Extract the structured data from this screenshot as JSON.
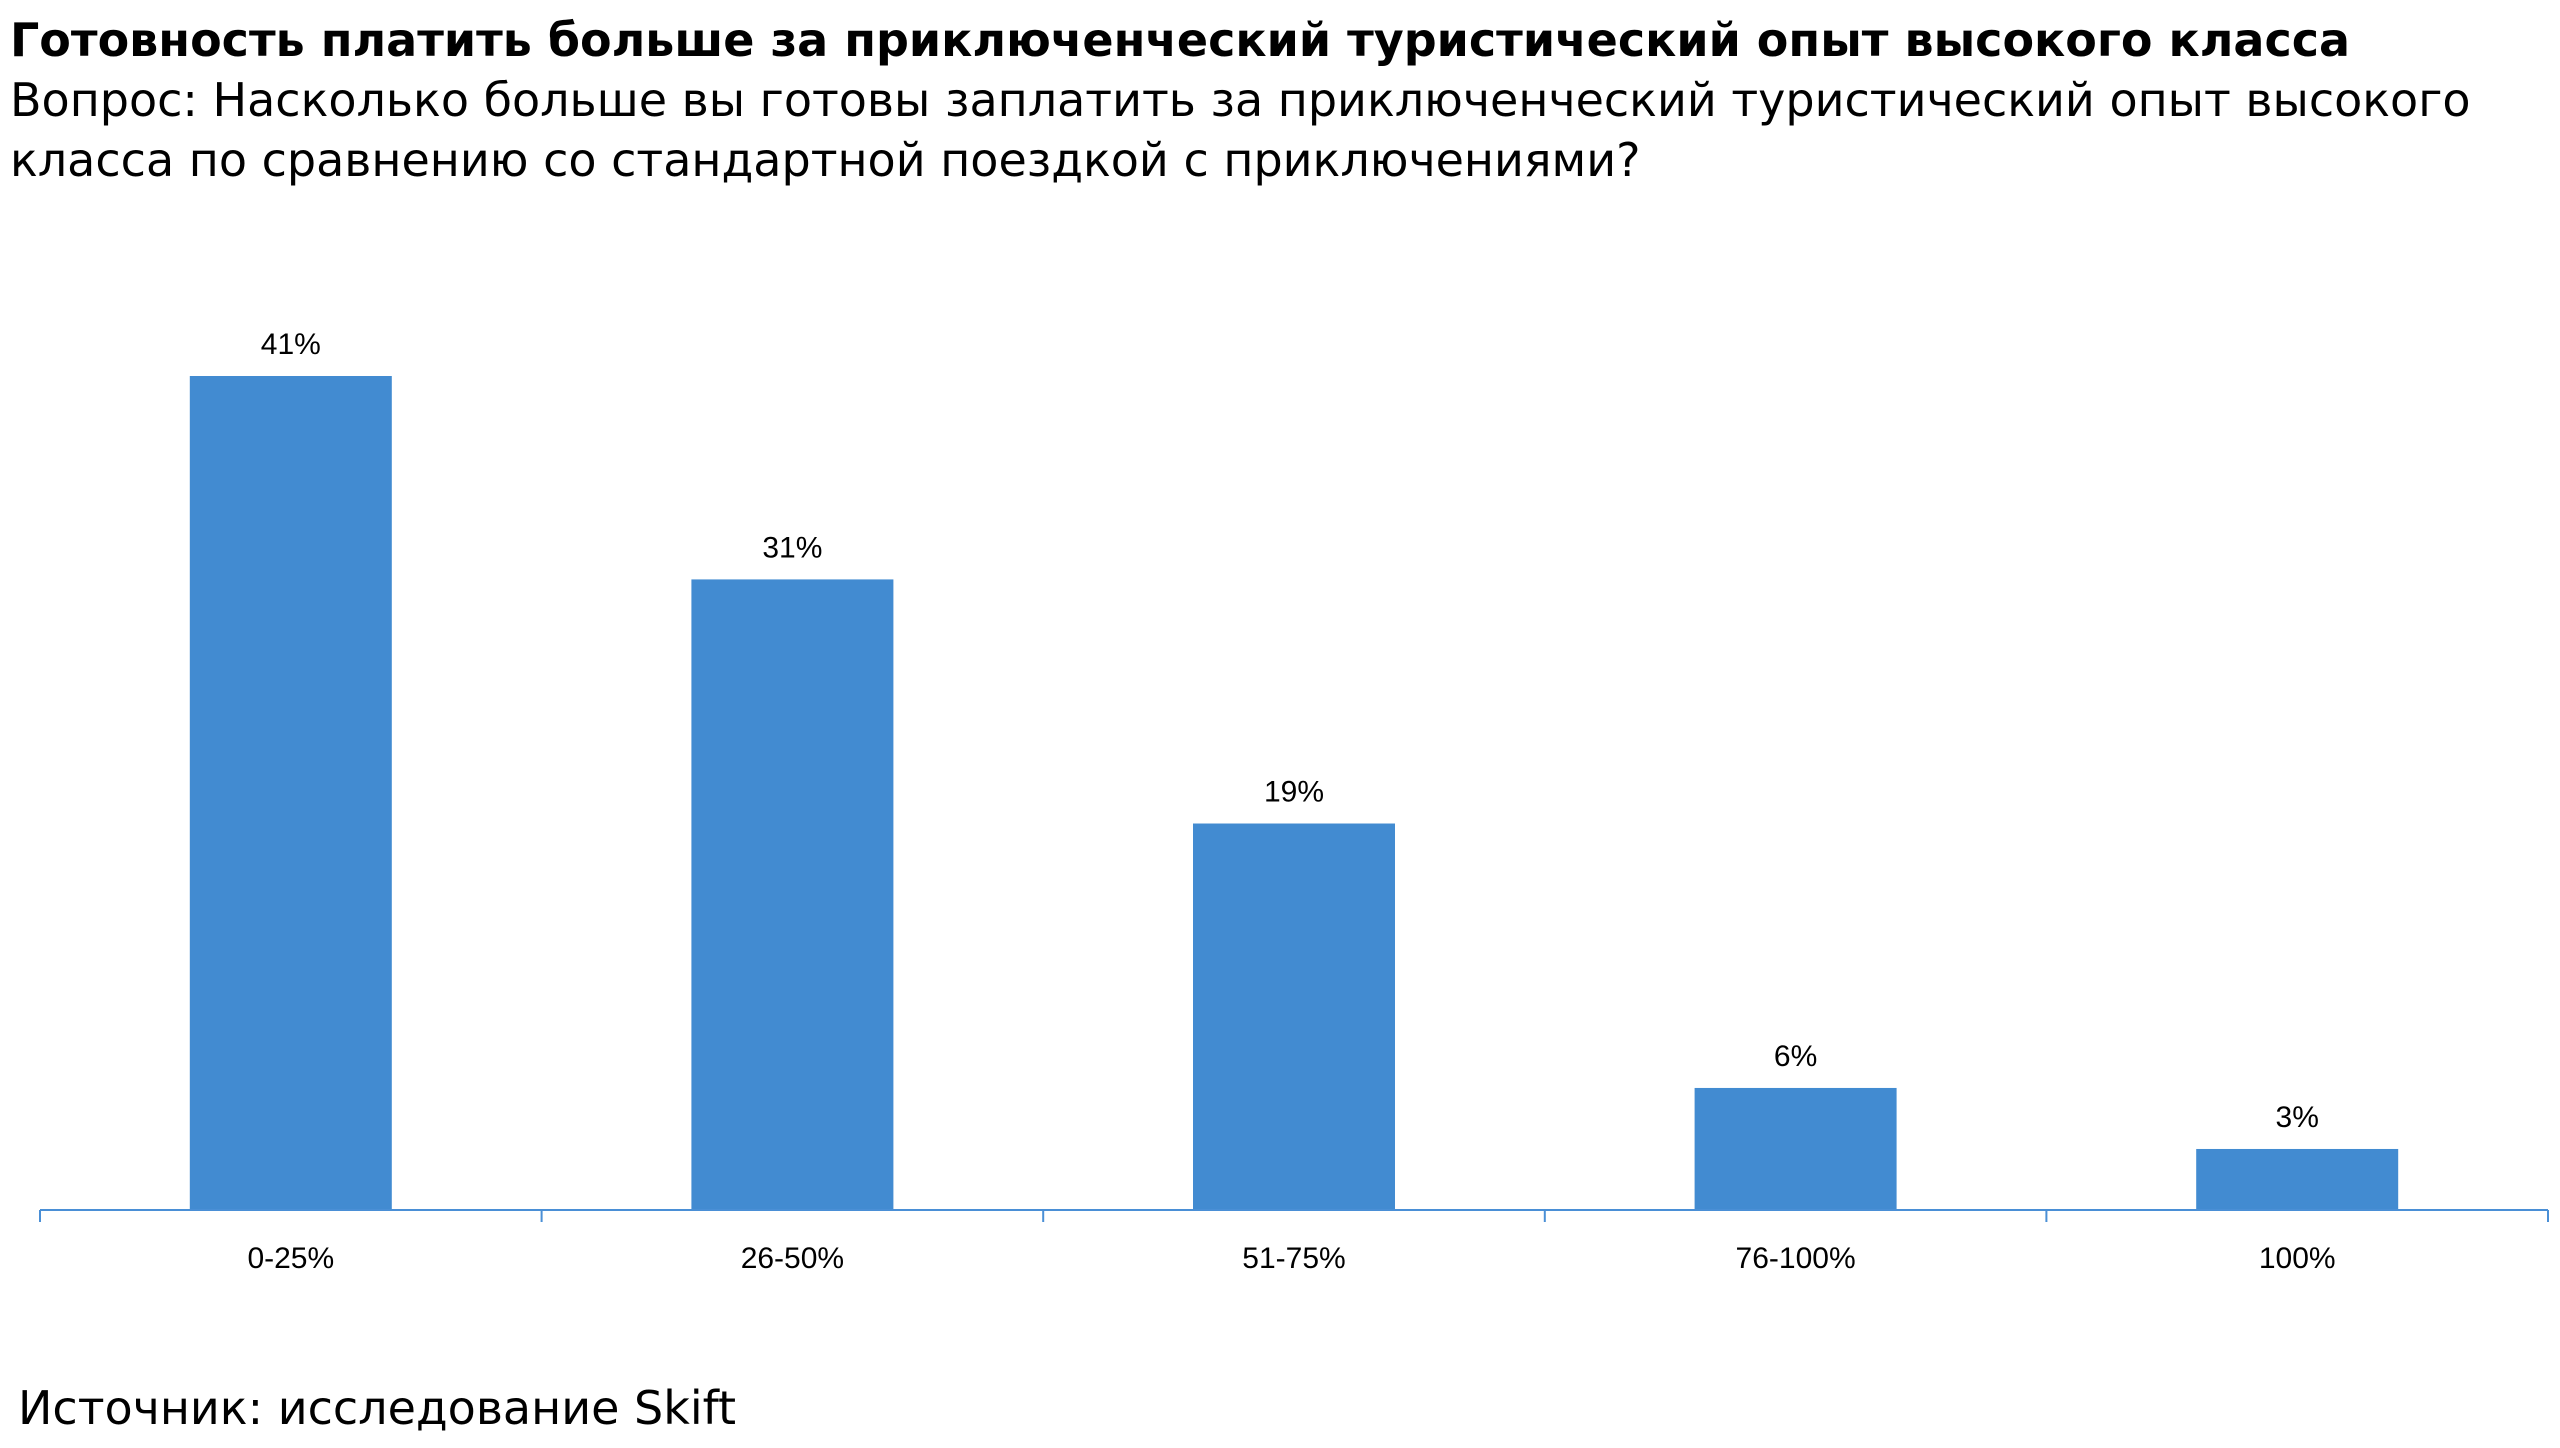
{
  "header": {
    "title": "Готовность платить больше за приключенческий туристический опыт высокого класса",
    "subtitle": "Вопрос: Насколько больше вы готовы заплатить за приключенческий туристический опыт высокого класса по сравнению со стандартной поездкой с приключениями?"
  },
  "footer": {
    "source": "Источник: исследование Skift"
  },
  "colors": {
    "bar": "#428BD1",
    "axis": "#4A8FD6"
  },
  "chart_data": {
    "type": "bar",
    "categories": [
      "0-25%",
      "26-50%",
      "51-75%",
      "76-100%",
      "100%"
    ],
    "values": [
      41,
      31,
      19,
      6,
      3
    ],
    "data_labels": [
      "41%",
      "31%",
      "19%",
      "6%",
      "3%"
    ],
    "title": "",
    "xlabel": "",
    "ylabel": "",
    "ylim": [
      0,
      41
    ],
    "grid": false,
    "legend": "none"
  }
}
